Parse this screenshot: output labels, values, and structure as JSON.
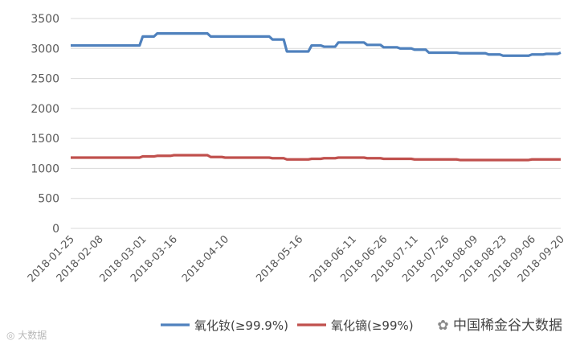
{
  "chart_data": {
    "type": "line",
    "title": "",
    "xlabel": "",
    "ylabel": "",
    "ylim": [
      0,
      3500
    ],
    "yticks": [
      0,
      500,
      1000,
      1500,
      2000,
      2500,
      3000,
      3500
    ],
    "grid": true,
    "legend_position": "bottom",
    "x_tick_labels": [
      "2018-01-25",
      "2018-02-08",
      "2018-03-01",
      "2018-03-16",
      "2018-04-10",
      "2018-05-16",
      "2018-06-11",
      "2018-06-26",
      "2018-07-11",
      "2018-07-26",
      "2018-08-09",
      "2018-08-23",
      "2018-09-06",
      "2018-09-20"
    ],
    "x": [
      "2018-01-25",
      "2018-02-08",
      "2018-02-22",
      "2018-03-01",
      "2018-03-08",
      "2018-03-16",
      "2018-03-26",
      "2018-04-03",
      "2018-04-10",
      "2018-04-20",
      "2018-05-03",
      "2018-05-10",
      "2018-05-16",
      "2018-05-22",
      "2018-05-28",
      "2018-06-04",
      "2018-06-11",
      "2018-06-18",
      "2018-06-26",
      "2018-07-04",
      "2018-07-11",
      "2018-07-18",
      "2018-07-26",
      "2018-08-02",
      "2018-08-09",
      "2018-08-16",
      "2018-08-23",
      "2018-08-30",
      "2018-09-06",
      "2018-09-13",
      "2018-09-20"
    ],
    "series": [
      {
        "name": "氧化钕(≥99.9%)",
        "color": "#4f81bd",
        "values": [
          3050,
          3050,
          3050,
          3200,
          3250,
          3250,
          3250,
          3200,
          3200,
          3200,
          3150,
          2950,
          2950,
          3050,
          3030,
          3100,
          3100,
          3060,
          3020,
          3000,
          2980,
          2930,
          2930,
          2920,
          2920,
          2900,
          2880,
          2880,
          2900,
          2910,
          2930
        ]
      },
      {
        "name": "氧化镝(≥99%)",
        "color": "#c0504d",
        "values": [
          1180,
          1180,
          1180,
          1200,
          1210,
          1220,
          1220,
          1190,
          1180,
          1180,
          1170,
          1150,
          1150,
          1160,
          1170,
          1180,
          1180,
          1170,
          1160,
          1160,
          1150,
          1150,
          1150,
          1140,
          1140,
          1140,
          1140,
          1140,
          1150,
          1150,
          1150
        ]
      }
    ]
  },
  "watermark_left": "大数据",
  "watermark_right": "中国稀金谷大数据"
}
